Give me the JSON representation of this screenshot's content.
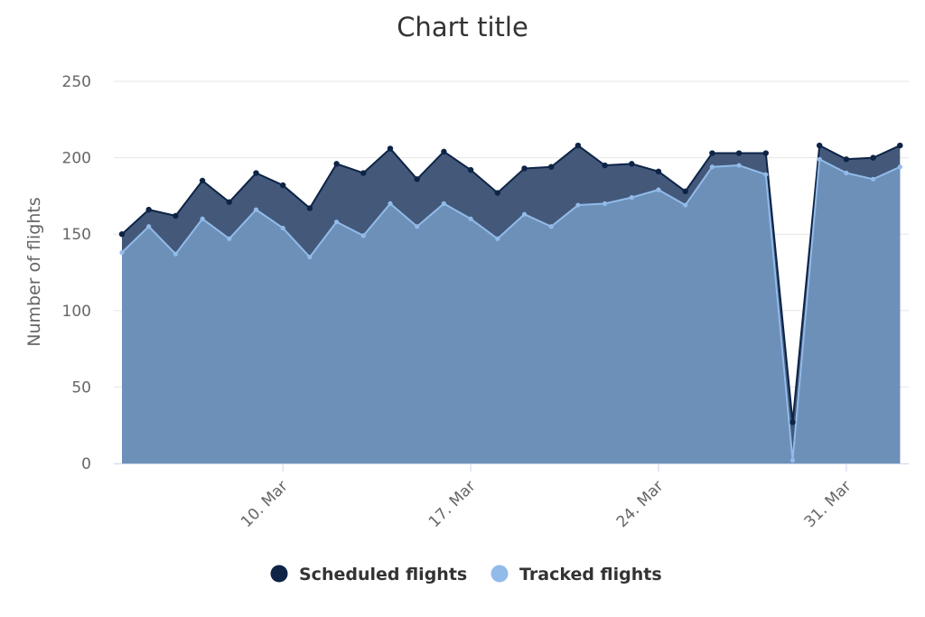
{
  "chart_data": {
    "type": "area",
    "title": "Chart title",
    "ylabel": "Number of flights",
    "xlabel": "",
    "ylim": [
      0,
      250
    ],
    "yticks": [
      0,
      50,
      100,
      150,
      200,
      250
    ],
    "grid": true,
    "legend_position": "bottom-center",
    "x": [
      "2020-03-04",
      "2020-03-05",
      "2020-03-06",
      "2020-03-07",
      "2020-03-08",
      "2020-03-09",
      "2020-03-10",
      "2020-03-11",
      "2020-03-12",
      "2020-03-13",
      "2020-03-14",
      "2020-03-15",
      "2020-03-16",
      "2020-03-17",
      "2020-03-18",
      "2020-03-19",
      "2020-03-20",
      "2020-03-21",
      "2020-03-22",
      "2020-03-23",
      "2020-03-24",
      "2020-03-25",
      "2020-03-26",
      "2020-03-27",
      "2020-03-28",
      "2020-03-29",
      "2020-03-30",
      "2020-03-31",
      "2020-04-01",
      "2020-04-02"
    ],
    "x_ticks": [
      {
        "date": "2020-03-10",
        "label": "10. Mar"
      },
      {
        "date": "2020-03-17",
        "label": "17. Mar"
      },
      {
        "date": "2020-03-24",
        "label": "24. Mar"
      },
      {
        "date": "2020-03-31",
        "label": "31. Mar"
      }
    ],
    "series": [
      {
        "name": "Scheduled flights",
        "color": "#0d2447",
        "area_color": "#44597a",
        "values": [
          150,
          166,
          162,
          185,
          171,
          190,
          182,
          167,
          196,
          190,
          206,
          186,
          204,
          192,
          177,
          193,
          194,
          208,
          195,
          196,
          191,
          178,
          203,
          203,
          203,
          27,
          208,
          199,
          200,
          208
        ]
      },
      {
        "name": "Tracked flights",
        "color": "#92bbea",
        "area_color": "#6c90b8",
        "values": [
          138,
          155,
          137,
          160,
          147,
          166,
          154,
          135,
          158,
          149,
          170,
          155,
          170,
          160,
          147,
          163,
          155,
          169,
          170,
          174,
          179,
          169,
          194,
          195,
          189,
          2,
          199,
          190,
          186,
          194
        ]
      }
    ]
  }
}
